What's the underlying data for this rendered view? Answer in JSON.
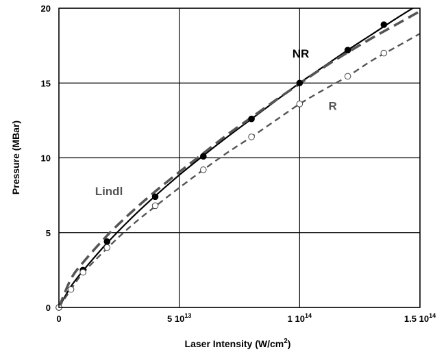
{
  "chart_data": {
    "type": "line",
    "title": "",
    "xlabel": {
      "main": "Laser Intensity  (W/cm",
      "sup": "2",
      "close": ")"
    },
    "ylabel": "Pressure  (MBar)",
    "xlim": [
      0,
      150000000000000.0
    ],
    "ylim": [
      0,
      20
    ],
    "grid": true,
    "x_ticks": [
      {
        "value": 0,
        "mantissa": "0",
        "exponent": ""
      },
      {
        "value": 50000000000000.0,
        "mantissa": "5 10",
        "exponent": "13"
      },
      {
        "value": 100000000000000.0,
        "mantissa": "1 10",
        "exponent": "14"
      },
      {
        "value": 150000000000000.0,
        "mantissa": "1.5 10",
        "exponent": "14"
      }
    ],
    "y_ticks": [
      {
        "value": 0,
        "label": "0"
      },
      {
        "value": 5,
        "label": "5"
      },
      {
        "value": 10,
        "label": "10"
      },
      {
        "value": 15,
        "label": "15"
      },
      {
        "value": 20,
        "label": "20"
      }
    ],
    "series": [
      {
        "name": "NR",
        "color": "#000000",
        "line_style": "solid",
        "marker": "filled-circle",
        "x": [
          0,
          10000000000000.0,
          20000000000000.0,
          40000000000000.0,
          60000000000000.0,
          80000000000000.0,
          100000000000000.0,
          120000000000000.0,
          135000000000000.0
        ],
        "y": [
          0,
          2.5,
          4.4,
          7.4,
          10.1,
          12.6,
          15.0,
          17.2,
          18.9
        ],
        "curve_x": [
          0,
          5000000000000.0,
          10000000000000.0,
          20000000000000.0,
          30000000000000.0,
          40000000000000.0,
          50000000000000.0,
          60000000000000.0,
          70000000000000.0,
          80000000000000.0,
          90000000000000.0,
          100000000000000.0,
          110000000000000.0,
          120000000000000.0,
          130000000000000.0,
          140000000000000.0,
          150000000000000.0
        ],
        "curve_y": [
          0,
          1.4,
          2.45,
          4.3,
          5.95,
          7.45,
          8.85,
          10.15,
          11.4,
          12.6,
          13.8,
          15.0,
          16.1,
          17.2,
          18.25,
          19.3,
          20.3
        ]
      },
      {
        "name": "R",
        "color": "#555555",
        "line_style": "dashed",
        "marker": "open-circle",
        "x": [
          0,
          5000000000000.0,
          10000000000000.0,
          20000000000000.0,
          40000000000000.0,
          60000000000000.0,
          80000000000000.0,
          100000000000000.0,
          120000000000000.0,
          135000000000000.0
        ],
        "y": [
          0,
          1.2,
          2.35,
          4.0,
          6.8,
          9.2,
          11.4,
          13.6,
          15.45,
          17.0
        ],
        "curve_x": [
          0,
          5000000000000.0,
          10000000000000.0,
          20000000000000.0,
          30000000000000.0,
          40000000000000.0,
          50000000000000.0,
          60000000000000.0,
          70000000000000.0,
          80000000000000.0,
          90000000000000.0,
          100000000000000.0,
          110000000000000.0,
          120000000000000.0,
          130000000000000.0,
          140000000000000.0,
          150000000000000.0
        ],
        "curve_y": [
          0,
          1.2,
          2.3,
          3.95,
          5.45,
          6.75,
          8.0,
          9.2,
          10.35,
          11.4,
          12.5,
          13.6,
          14.55,
          15.45,
          16.5,
          17.4,
          18.3
        ]
      },
      {
        "name": "Lindl",
        "color": "#555555",
        "line_style": "long-dashed",
        "marker": "none",
        "curve_x": [
          0,
          5000000000000.0,
          10000000000000.0,
          20000000000000.0,
          30000000000000.0,
          40000000000000.0,
          50000000000000.0,
          60000000000000.0,
          70000000000000.0,
          80000000000000.0,
          90000000000000.0,
          100000000000000.0,
          110000000000000.0,
          120000000000000.0,
          130000000000000.0,
          140000000000000.0,
          150000000000000.0
        ],
        "curve_y": [
          0,
          1.9,
          3.0,
          4.8,
          6.35,
          7.75,
          9.05,
          10.3,
          11.55,
          12.7,
          13.85,
          14.95,
          16.05,
          17.05,
          18.0,
          18.9,
          19.8
        ]
      }
    ],
    "annotations": [
      {
        "text": "NR",
        "x": 97000000000000.0,
        "y": 16.7,
        "color": "#000000"
      },
      {
        "text": "R",
        "x": 112000000000000.0,
        "y": 13.2,
        "color": "#555555"
      },
      {
        "text": "Lindl",
        "x": 15000000000000.0,
        "y": 7.5,
        "color": "#555555"
      }
    ]
  }
}
